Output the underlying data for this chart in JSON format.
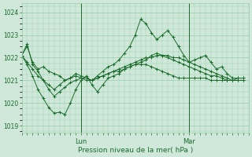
{
  "xlabel": "Pression niveau de la mer( hPa )",
  "bg_color": "#cfe8da",
  "grid_color": "#99ccaa",
  "line_color": "#1a6b2a",
  "ylim": [
    1018.7,
    1024.4
  ],
  "yticks": [
    1019,
    1020,
    1021,
    1022,
    1023,
    1024
  ],
  "xlim": [
    0,
    42
  ],
  "lun_x": 11,
  "mar_x": 31,
  "series1": [
    1022.1,
    1022.5,
    1021.8,
    1021.5,
    1021.6,
    1021.4,
    1021.3,
    1021.2,
    1021.0,
    1021.1,
    1021.3,
    1021.2,
    1021.1,
    1021.0,
    1021.1,
    1021.2,
    1021.3,
    1021.4,
    1021.4,
    1021.5,
    1021.6,
    1021.7,
    1021.7,
    1021.7,
    1021.6,
    1021.5,
    1021.4,
    1021.3,
    1021.2,
    1021.1,
    1021.1,
    1021.1,
    1021.1,
    1021.1,
    1021.1,
    1021.0,
    1021.0,
    1021.0,
    1021.0,
    1021.0,
    1021.1,
    1021.1
  ],
  "series2": [
    1022.1,
    1022.6,
    1021.7,
    1021.4,
    1021.0,
    1020.6,
    1020.3,
    1020.5,
    1020.7,
    1020.9,
    1021.0,
    1021.1,
    1021.1,
    1021.0,
    1021.2,
    1021.4,
    1021.6,
    1021.7,
    1021.9,
    1022.2,
    1022.5,
    1023.0,
    1023.7,
    1023.5,
    1023.1,
    1022.8,
    1023.0,
    1023.2,
    1022.9,
    1022.5,
    1022.1,
    1021.8,
    1021.9,
    1022.0,
    1022.1,
    1021.8,
    1021.5,
    1021.6,
    1021.3,
    1021.1,
    1021.1,
    1021.1
  ],
  "series3": [
    1022.1,
    1021.7,
    1021.2,
    1020.6,
    1020.2,
    1019.8,
    1019.55,
    1019.6,
    1019.5,
    1020.0,
    1020.6,
    1021.0,
    1021.2,
    1020.8,
    1020.5,
    1020.8,
    1021.1,
    1021.2,
    1021.3,
    1021.5,
    1021.6,
    1021.7,
    1021.8,
    1021.9,
    1022.1,
    1022.2,
    1022.1,
    1022.0,
    1021.9,
    1021.8,
    1021.7,
    1021.6,
    1021.5,
    1021.4,
    1021.3,
    1021.2,
    1021.2,
    1021.1,
    1021.0,
    1021.0,
    1021.0,
    1021.0
  ],
  "series4": [
    1022.1,
    1021.8,
    1021.5,
    1021.2,
    1021.0,
    1020.8,
    1020.6,
    1020.8,
    1021.0,
    1021.1,
    1021.2,
    1021.1,
    1021.0,
    1021.0,
    1021.1,
    1021.2,
    1021.3,
    1021.4,
    1021.5,
    1021.6,
    1021.7,
    1021.8,
    1021.9,
    1022.0,
    1022.0,
    1022.1,
    1022.1,
    1022.1,
    1022.0,
    1022.0,
    1021.9,
    1021.8,
    1021.7,
    1021.6,
    1021.5,
    1021.4,
    1021.3,
    1021.2,
    1021.1,
    1021.0,
    1021.0,
    1021.0
  ]
}
